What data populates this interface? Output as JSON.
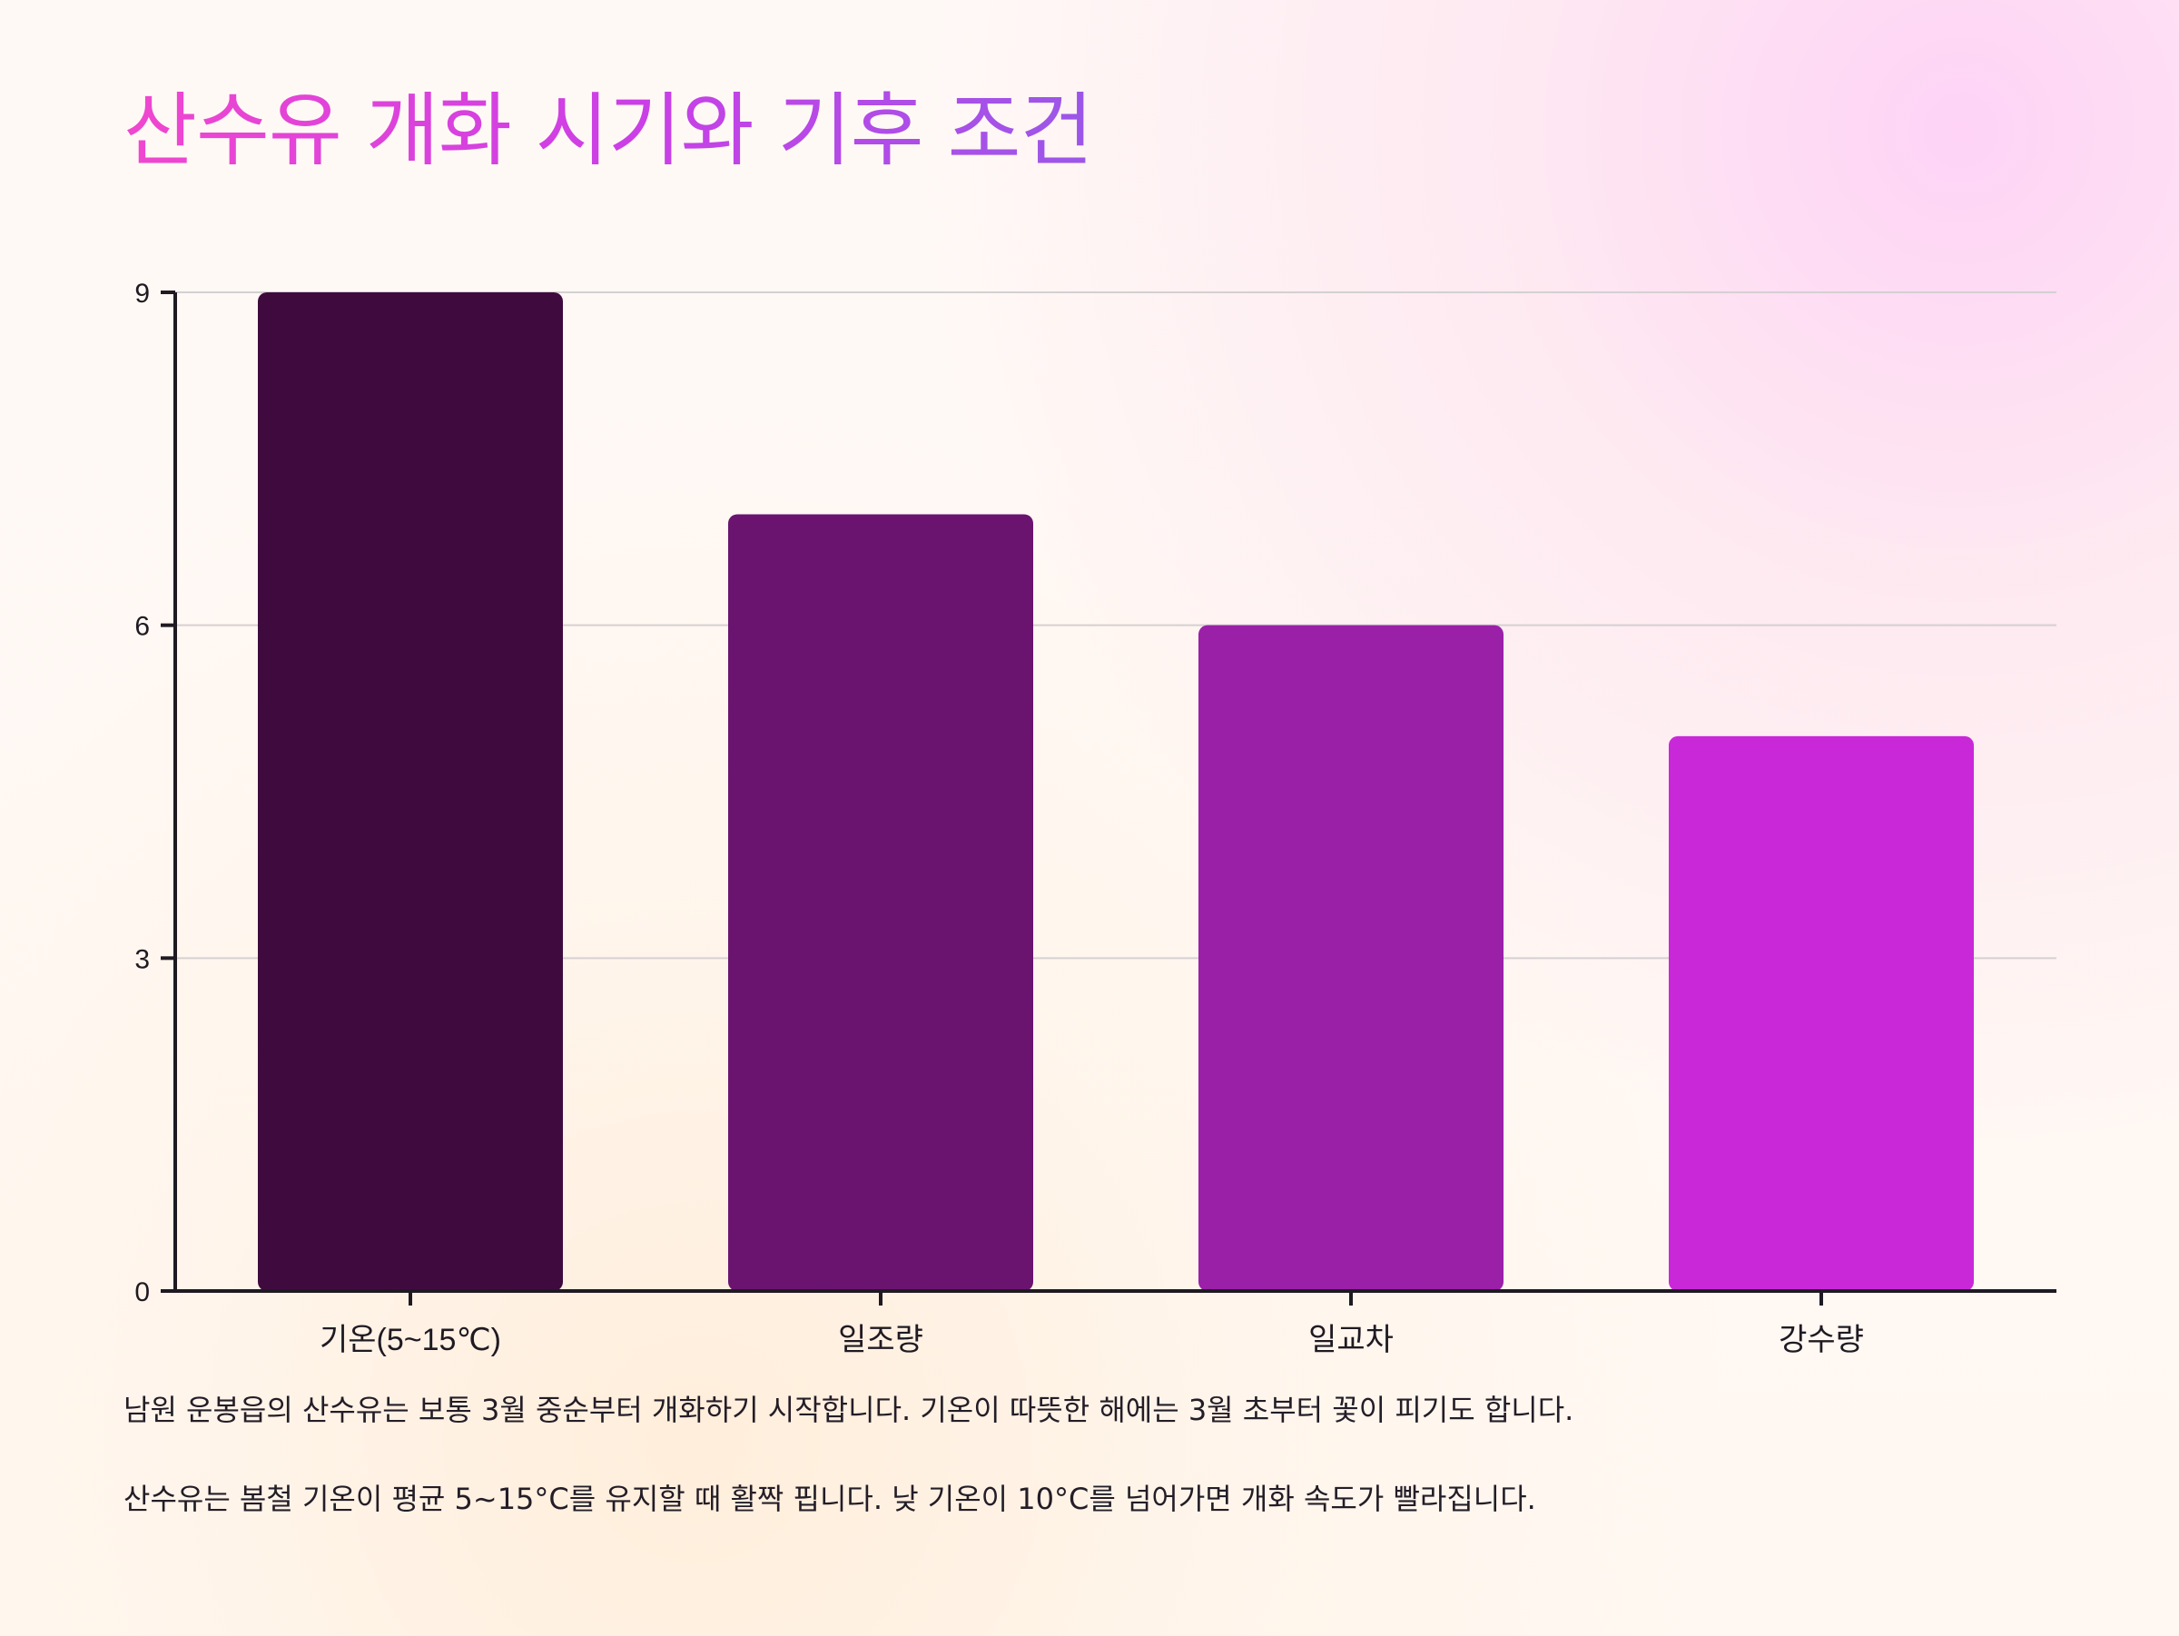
{
  "title": "산수유 개화 시기와 기후 조건",
  "chart_data": {
    "type": "bar",
    "categories": [
      "기온(5~15℃)",
      "일조량",
      "일교차",
      "강수량"
    ],
    "values": [
      9,
      7,
      6,
      5
    ],
    "ylim": [
      0,
      9
    ],
    "y_ticks": [
      0,
      3,
      6,
      9
    ],
    "grid": true,
    "colors": [
      "#3f0b3f",
      "#6a1470",
      "#9a20a8",
      "#c928d9"
    ]
  },
  "notes": [
    "남원 운봉읍의 산수유는 보통 3월 중순부터 개화하기 시작합니다. 기온이 따뜻한 해에는 3월 초부터 꽃이 피기도 합니다.",
    "산수유는 봄철 기온이 평균 5~15°C를 유지할 때 활짝 핍니다. 낮 기온이 10°C를 넘어가면 개화 속도가 빨라집니다."
  ]
}
